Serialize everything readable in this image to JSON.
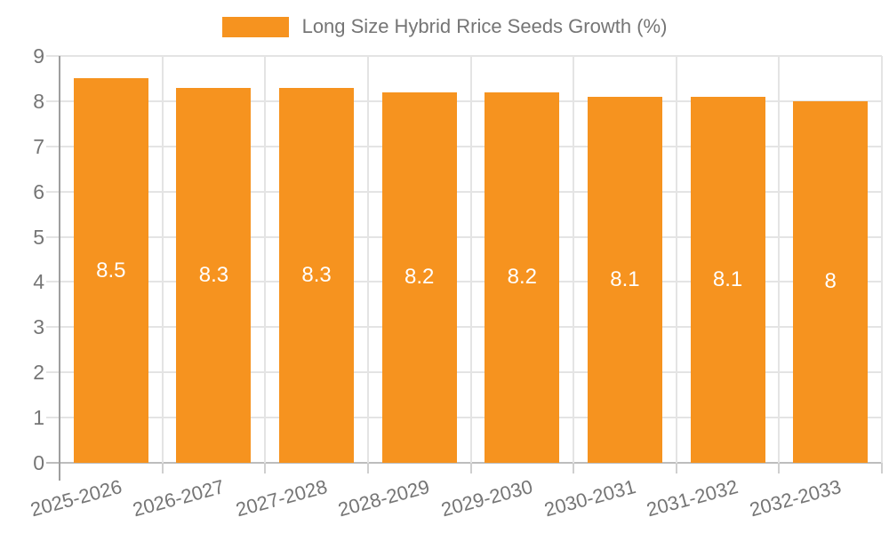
{
  "legend": {
    "label": "Long Size Hybrid Rrice Seeds Growth (%)"
  },
  "chart_data": {
    "type": "bar",
    "title": "Long Size Hybrid Rrice Seeds Growth (%)",
    "categories": [
      "2025-2026",
      "2026-2027",
      "2027-2028",
      "2028-2029",
      "2029-2030",
      "2030-2031",
      "2031-2032",
      "2032-2033"
    ],
    "values": [
      8.5,
      8.3,
      8.3,
      8.2,
      8.2,
      8.1,
      8.1,
      8
    ],
    "xlabel": "",
    "ylabel": "",
    "ylim": [
      0,
      9
    ],
    "ytick_step": 1,
    "grid": true,
    "legend_position": "top-center",
    "x_label_rotation_deg": -15,
    "colors": {
      "bar": "#F6931F",
      "bar_label": "#FFFFFF",
      "grid": "#E4E4E4",
      "baseline": "#BDBDBD",
      "axis": "#9E9E9E",
      "tick": "#CFCFCF",
      "text": "#757575"
    }
  }
}
